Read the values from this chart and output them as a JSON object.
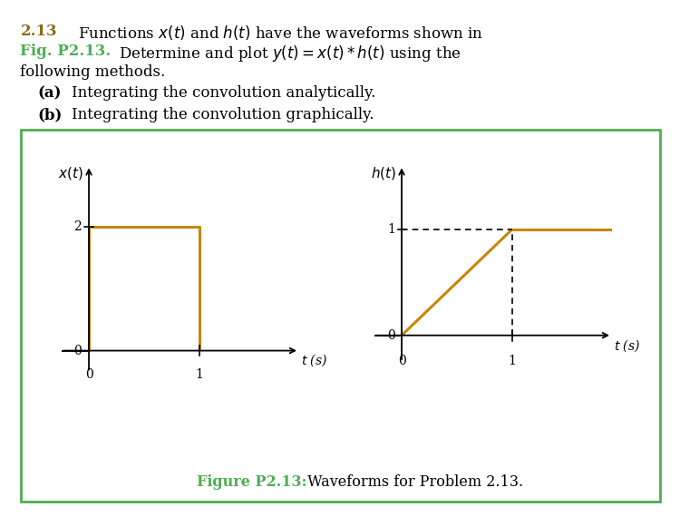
{
  "waveform_color": "#C8860A",
  "box_color": "#4CAF50",
  "green_text_color": "#4CAF50",
  "brown_color": "#8B6914",
  "fig_label": "Figure P2.13:",
  "fig_caption": " Waveforms for Problem 2.13.",
  "left_plot": {
    "xlim": [
      -0.25,
      1.9
    ],
    "ylim": [
      -0.35,
      3.0
    ]
  },
  "right_plot": {
    "xlim": [
      -0.25,
      1.9
    ],
    "ylim": [
      -0.25,
      1.6
    ]
  }
}
